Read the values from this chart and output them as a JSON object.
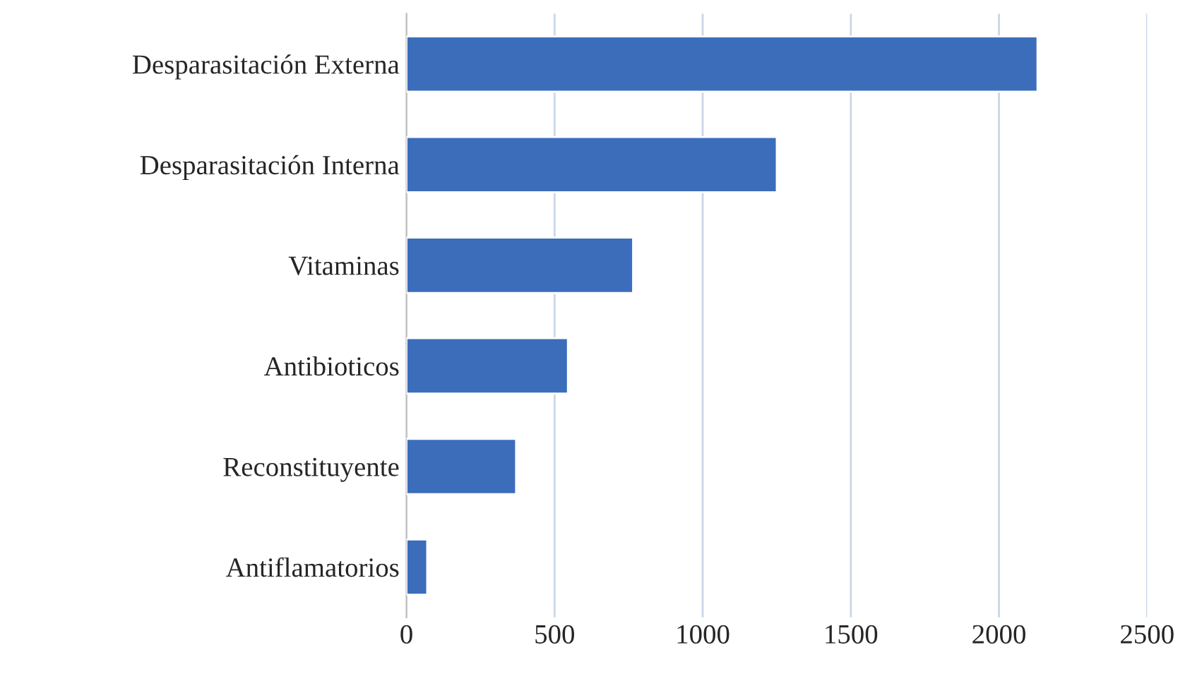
{
  "chart_data": {
    "type": "bar",
    "orientation": "horizontal",
    "categories": [
      "Desparasitación Externa",
      "Desparasitación Interna",
      "Vitaminas",
      "Antibioticos",
      "Reconstituyente",
      "Antiflamatorios"
    ],
    "values": [
      2130,
      1250,
      765,
      545,
      370,
      70
    ],
    "color": "#3b6dbb",
    "xlim": [
      0,
      2500
    ],
    "xticks": [
      0,
      500,
      1000,
      1500,
      2000,
      2500
    ],
    "grid": "x",
    "legend": false
  }
}
